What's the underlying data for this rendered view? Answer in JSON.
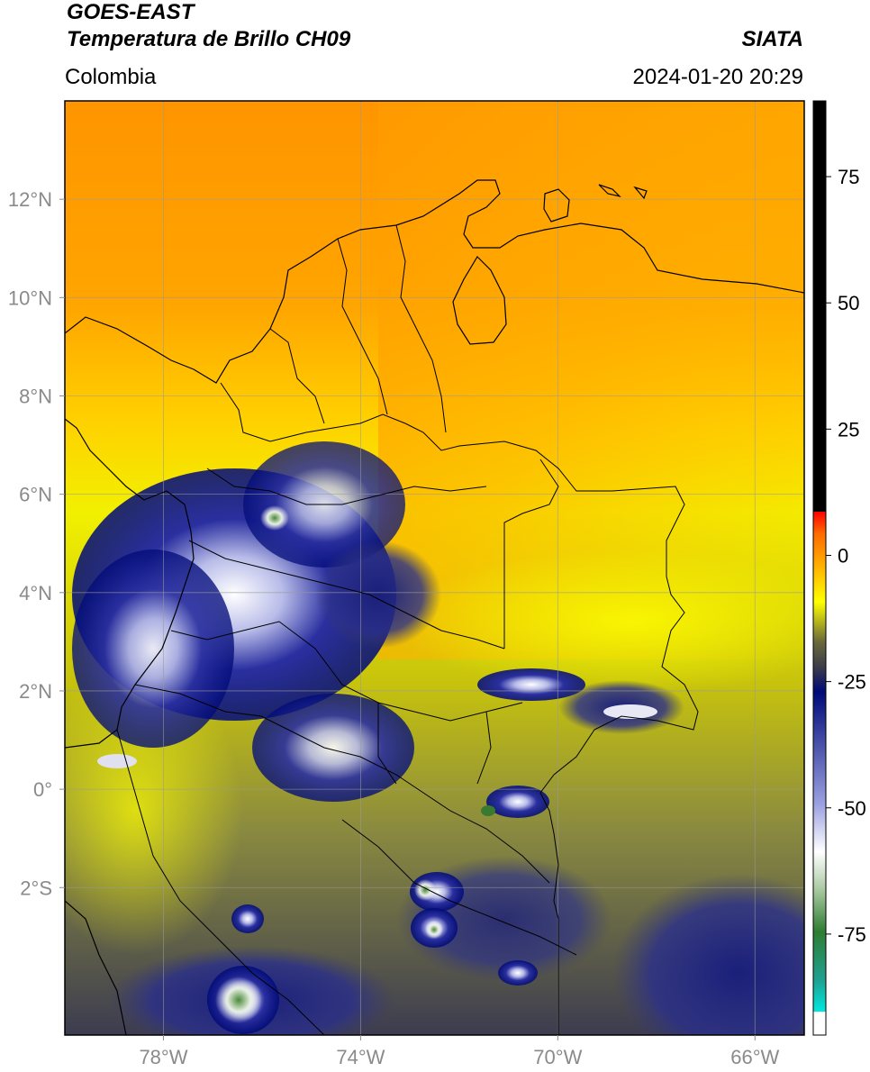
{
  "header": {
    "satellite": "GOES-EAST",
    "product": "Temperatura de Brillo CH09",
    "region": "Colombia",
    "institution": "SIATA",
    "datetime": "2024-01-20 20:29"
  },
  "map": {
    "lon_range": [
      -80,
      -65
    ],
    "lat_range": [
      -5,
      14
    ],
    "lon_ticks": [
      {
        "value": -78,
        "label": "78°W"
      },
      {
        "value": -74,
        "label": "74°W"
      },
      {
        "value": -70,
        "label": "70°W"
      },
      {
        "value": -66,
        "label": "66°W"
      }
    ],
    "lat_ticks": [
      {
        "value": 12,
        "label": "12°N"
      },
      {
        "value": 10,
        "label": "10°N"
      },
      {
        "value": 8,
        "label": "8°N"
      },
      {
        "value": 6,
        "label": "6°N"
      },
      {
        "value": 4,
        "label": "4°N"
      },
      {
        "value": 2,
        "label": "2°N"
      },
      {
        "value": 0,
        "label": "0°"
      },
      {
        "value": -2,
        "label": "2°S"
      }
    ],
    "gridlines": true
  },
  "colorbar": {
    "range": [
      -95,
      90
    ],
    "ticks": [
      {
        "value": 75,
        "label": "75"
      },
      {
        "value": 50,
        "label": "50"
      },
      {
        "value": 25,
        "label": "25"
      },
      {
        "value": 0,
        "label": "0"
      },
      {
        "value": -25,
        "label": "-25"
      },
      {
        "value": -50,
        "label": "-50"
      },
      {
        "value": -75,
        "label": "-75"
      }
    ],
    "colors": {
      "black": "#000000",
      "red": "#ff1a00",
      "orange": "#ff8c00",
      "yellow": "#ffff00",
      "olive": "#6e6e3c",
      "navy": "#000a78",
      "white": "#ffffff",
      "green": "#2e7d32",
      "teal": "#00d8d0"
    }
  }
}
